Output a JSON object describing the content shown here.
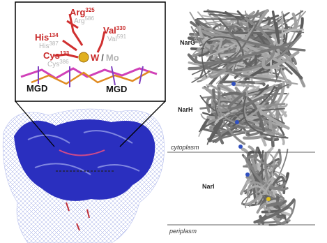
{
  "left_panel": {
    "residues": [
      {
        "name": "Arg",
        "number": 325,
        "alt_name": "Arg",
        "alt_number": 586
      },
      {
        "name": "His",
        "number": 134,
        "alt_name": "His",
        "alt_number": 387
      },
      {
        "name": "Val",
        "number": 330,
        "alt_name": "Val",
        "alt_number": 591
      },
      {
        "name": "Cys",
        "number": 133,
        "alt_name": "Cys",
        "alt_number": 386
      }
    ],
    "metal": {
      "primary": "W",
      "separator": "/",
      "secondary": "Mo"
    },
    "cofactors": [
      "MGD",
      "MGD"
    ]
  },
  "right_panel": {
    "subunits": [
      "NarG",
      "NarH",
      "NarI"
    ],
    "membrane": [
      "cytoplasm",
      "periplasm"
    ]
  }
}
